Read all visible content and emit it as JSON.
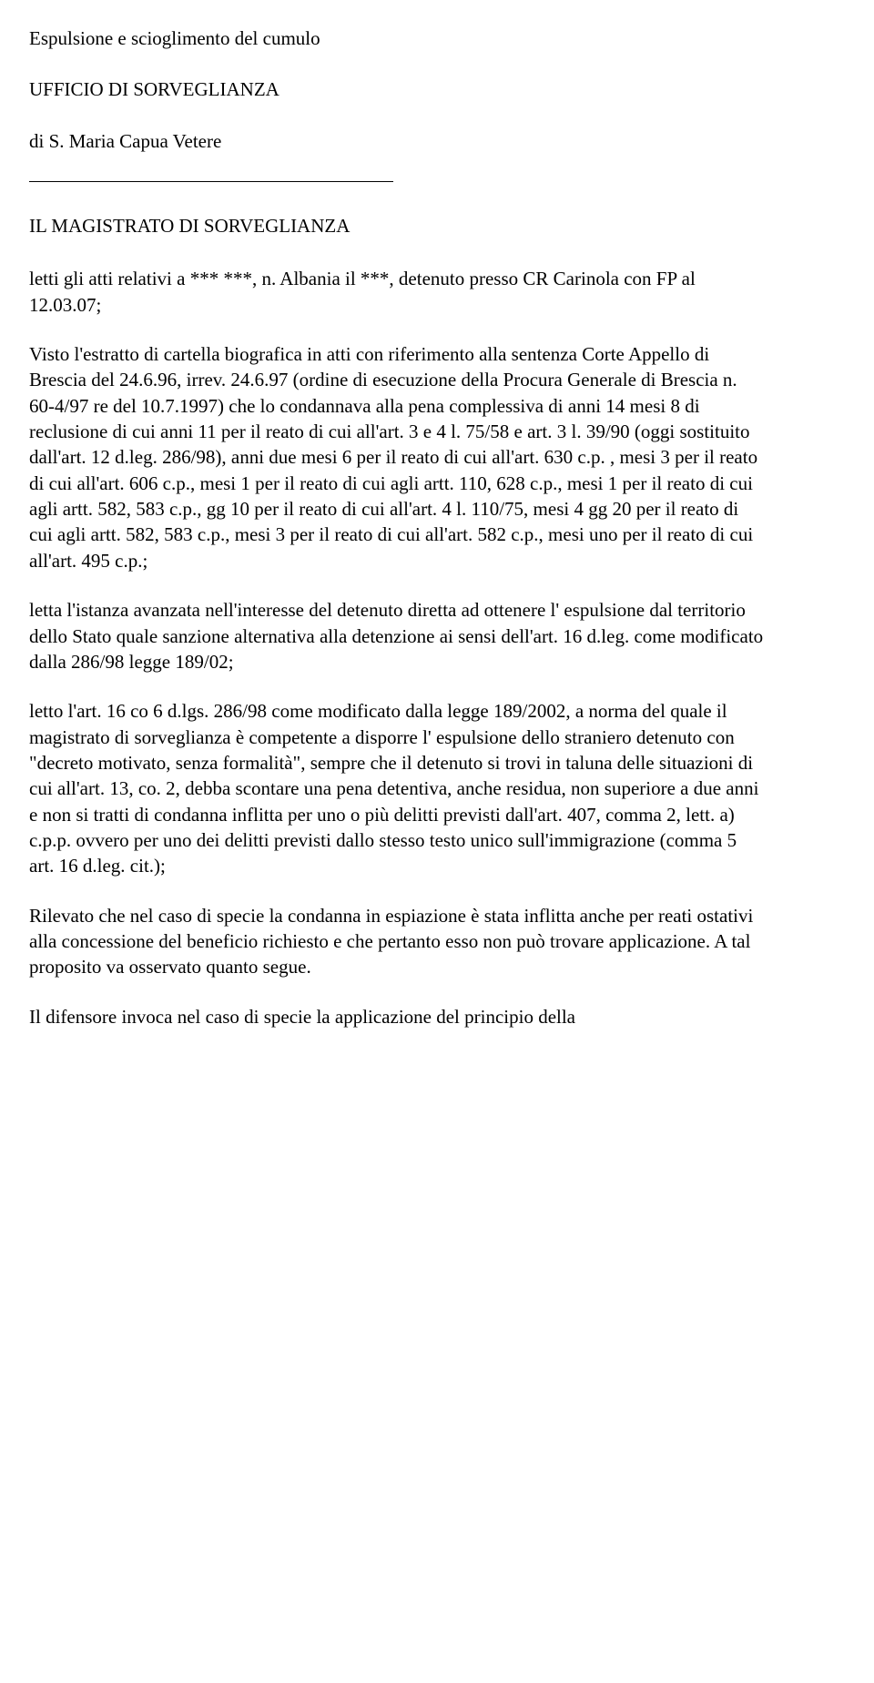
{
  "title": "Espulsione e scioglimento del cumulo",
  "office": "UFFICIO DI SORVEGLIANZA",
  "court": "di S. Maria Capua Vetere",
  "heading": "IL MAGISTRATO DI SORVEGLIANZA",
  "paragraphs": {
    "p1": "letti gli atti relativi a *** ***, n. Albania il ***, detenuto presso CR Carinola con FP al 12.03.07;",
    "p2": "Visto l'estratto di cartella biografica in atti con riferimento alla sentenza Corte Appello di Brescia del 24.6.96, irrev. 24.6.97 (ordine di esecuzione della Procura Generale di Brescia n. 60-4/97 re del 10.7.1997) che lo condannava alla pena complessiva di anni 14 mesi 8 di reclusione di cui anni 11 per il reato di cui all'art. 3 e 4 l. 75/58 e art. 3 l. 39/90 (oggi sostituito dall'art. 12 d.leg. 286/98), anni due mesi 6 per il reato di cui all'art. 630 c.p. , mesi 3 per il reato di cui all'art. 606 c.p., mesi 1 per il reato di cui agli artt. 110, 628 c.p., mesi 1 per il reato di cui agli artt. 582, 583 c.p., gg 10 per il reato di cui all'art. 4 l. 110/75, mesi 4 gg 20 per il reato di cui agli artt. 582, 583 c.p., mesi 3 per il reato di cui all'art. 582 c.p., mesi uno per il reato di cui all'art. 495 c.p.;",
    "p3": "letta l'istanza avanzata nell'interesse del detenuto diretta ad ottenere l' espulsione dal territorio dello Stato quale sanzione alternativa alla detenzione ai sensi dell'art. 16 d.leg. come modificato dalla 286/98 legge 189/02;",
    "p4": "letto l'art. 16 co 6 d.lgs. 286/98 come modificato dalla legge 189/2002, a norma del quale il magistrato di sorveglianza è competente a disporre l' espulsione dello straniero detenuto con \"decreto motivato, senza formalità\", sempre che il detenuto si trovi in taluna delle situazioni di cui all'art. 13, co. 2, debba scontare una pena detentiva, anche residua, non superiore a due anni e non si tratti di condanna inflitta per uno o più delitti previsti dall'art. 407, comma 2, lett. a) c.p.p. ovvero per uno dei delitti previsti dallo stesso testo unico sull'immigrazione (comma 5 art. 16 d.leg. cit.);",
    "p5": "Rilevato che nel caso di specie la condanna in espiazione è stata inflitta anche per reati ostativi alla concessione del beneficio richiesto e che pertanto esso non può trovare applicazione. A tal proposito va osservato quanto segue.",
    "p6": "Il difensore invoca nel caso di specie la applicazione del principio della"
  }
}
